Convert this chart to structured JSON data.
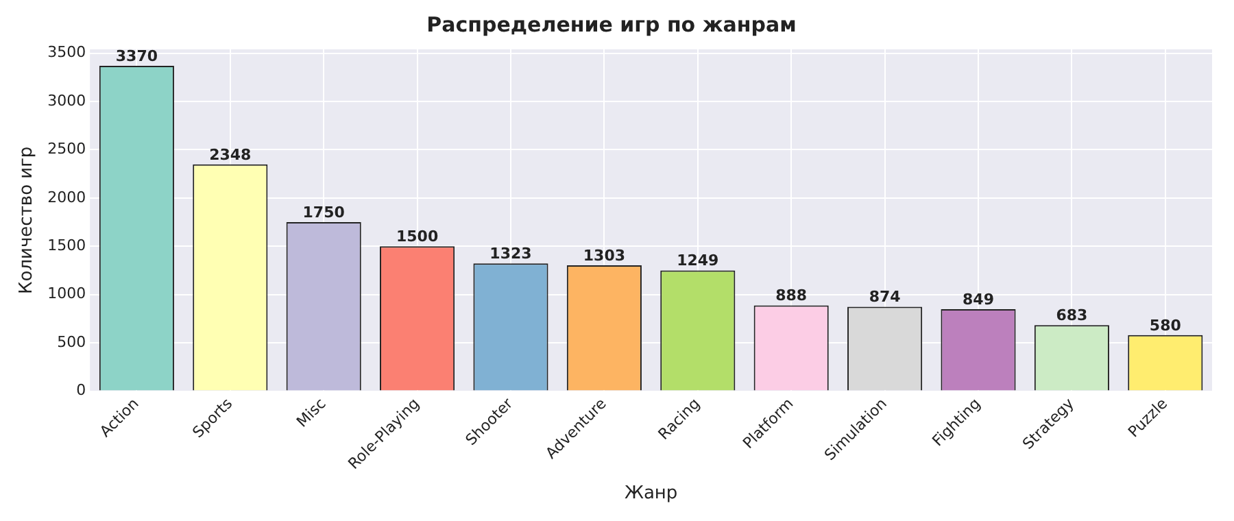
{
  "chart_data": {
    "type": "bar",
    "title": "Распределение игр по жанрам",
    "xlabel": "Жанр",
    "ylabel": "Количество игр",
    "categories": [
      "Action",
      "Sports",
      "Misc",
      "Role-Playing",
      "Shooter",
      "Adventure",
      "Racing",
      "Platform",
      "Simulation",
      "Fighting",
      "Strategy",
      "Puzzle"
    ],
    "values": [
      3370,
      2348,
      1750,
      1500,
      1323,
      1303,
      1249,
      888,
      874,
      849,
      683,
      580
    ],
    "colors": [
      "#8dd3c7",
      "#ffffb3",
      "#bebada",
      "#fb8072",
      "#80b1d3",
      "#fdb462",
      "#b3de69",
      "#fccde5",
      "#d9d9d9",
      "#bc80bd",
      "#ccebc5",
      "#ffed6f"
    ],
    "ylim": [
      0,
      3540
    ],
    "yticks": [
      0,
      500,
      1000,
      1500,
      2000,
      2500,
      3000,
      3500
    ],
    "grid": true,
    "data_labels": true
  }
}
